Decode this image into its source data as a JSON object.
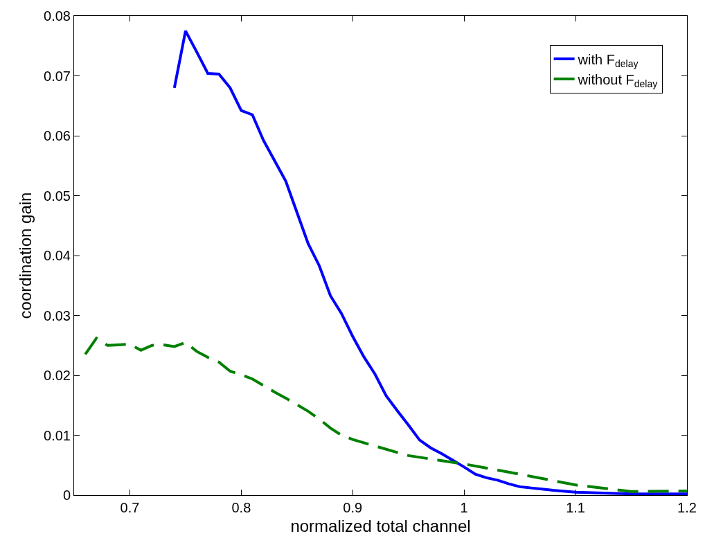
{
  "chart_data": {
    "type": "line",
    "xlabel": "normalized total channel",
    "ylabel": "coordination gain",
    "xlim": [
      0.65,
      1.2
    ],
    "xticks": [
      0.7,
      0.8,
      0.9,
      1,
      1.1,
      1.2
    ],
    "ylim": [
      0,
      0.08
    ],
    "yticks": [
      0,
      0.01,
      0.02,
      0.03,
      0.04,
      0.05,
      0.06,
      0.07,
      0.08
    ],
    "grid": false,
    "legend": "top right",
    "marker": "none",
    "series": [
      {
        "name": "with F$_{delay}$",
        "color": "#0000ff",
        "line_style": "solid",
        "x": [
          0.74,
          0.75,
          0.76,
          0.77,
          0.78,
          0.79,
          0.8,
          0.81,
          0.82,
          0.83,
          0.84,
          0.85,
          0.86,
          0.87,
          0.88,
          0.89,
          0.9,
          0.91,
          0.92,
          0.93,
          0.94,
          0.95,
          0.96,
          0.97,
          0.98,
          0.99,
          1.0,
          1.01,
          1.02,
          1.03,
          1.04,
          1.05,
          1.06,
          1.07,
          1.08,
          1.1,
          1.15,
          1.2
        ],
        "values": [
          0.068,
          0.0775,
          0.074,
          0.0704,
          0.0703,
          0.068,
          0.0642,
          0.0635,
          0.0592,
          0.0558,
          0.0524,
          0.0472,
          0.042,
          0.0383,
          0.0333,
          0.0303,
          0.0265,
          0.0231,
          0.0202,
          0.0166,
          0.0141,
          0.0117,
          0.0092,
          0.0079,
          0.0069,
          0.0058,
          0.0047,
          0.0035,
          0.0029,
          0.0025,
          0.0019,
          0.0014,
          0.0012,
          0.001,
          0.0008,
          0.0005,
          0.0002,
          0.0002
        ]
      },
      {
        "name": "without F$_{delay}$",
        "color": "#008000",
        "line_style": "dashed",
        "x": [
          0.66,
          0.67,
          0.68,
          0.69,
          0.7,
          0.71,
          0.72,
          0.73,
          0.74,
          0.75,
          0.76,
          0.77,
          0.78,
          0.79,
          0.8,
          0.81,
          0.82,
          0.83,
          0.84,
          0.85,
          0.86,
          0.87,
          0.88,
          0.89,
          0.9,
          0.92,
          0.95,
          1.0,
          1.05,
          1.1,
          1.15,
          1.2
        ],
        "values": [
          0.0235,
          0.0262,
          0.025,
          0.0251,
          0.0252,
          0.0242,
          0.025,
          0.0251,
          0.0248,
          0.0255,
          0.024,
          0.023,
          0.0222,
          0.0207,
          0.0201,
          0.0194,
          0.0183,
          0.0172,
          0.0162,
          0.0151,
          0.014,
          0.0127,
          0.0112,
          0.01,
          0.0093,
          0.0082,
          0.0066,
          0.0052,
          0.0035,
          0.0017,
          0.0006,
          0.0007
        ]
      }
    ]
  }
}
